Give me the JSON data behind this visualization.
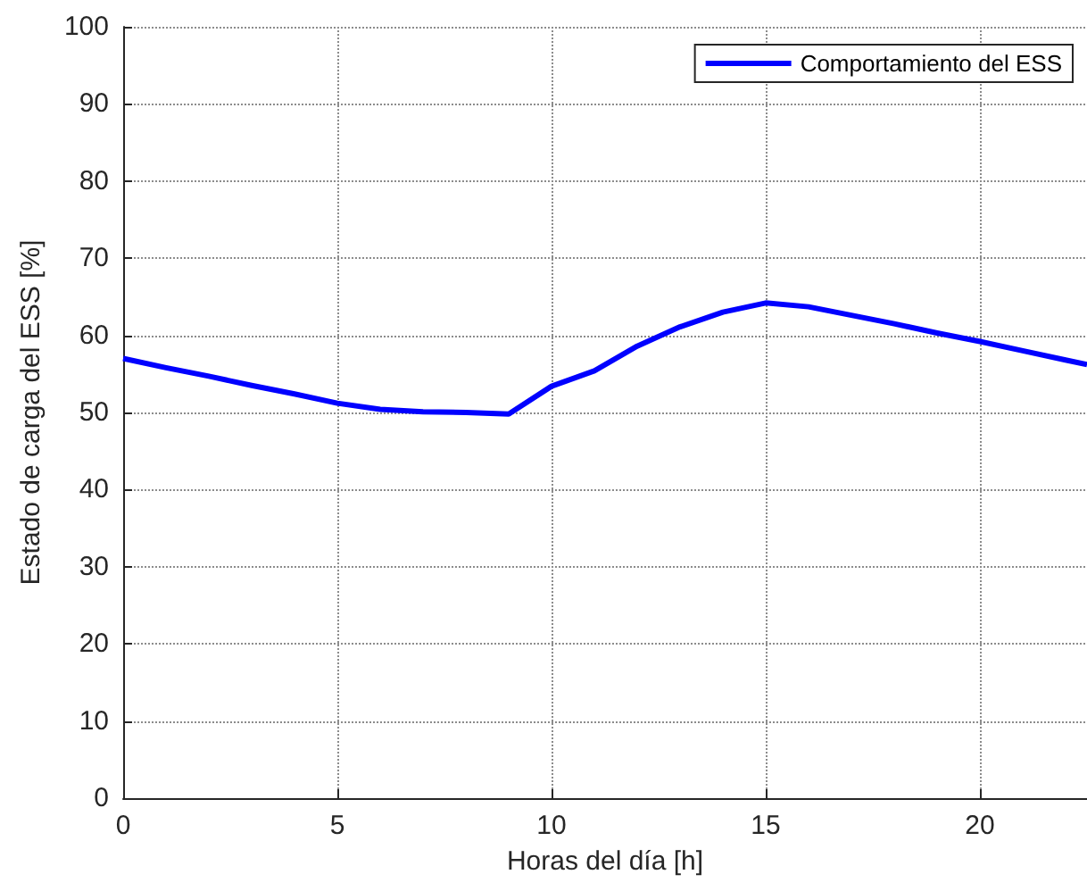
{
  "chart_data": {
    "type": "line",
    "xlabel": "Horas del día [h]",
    "ylabel": "Estado de carga del ESS [%]",
    "x": [
      0,
      1,
      2,
      3,
      4,
      5,
      6,
      7,
      8,
      9,
      10,
      11,
      12,
      13,
      14,
      15,
      16,
      17,
      18,
      19,
      20,
      21,
      22,
      22.5
    ],
    "series": [
      {
        "name": "Comportamiento del ESS",
        "color": "#0000ff",
        "values": [
          57,
          55.8,
          54.7,
          53.5,
          52.4,
          51.2,
          50.4,
          50.1,
          50,
          49.8,
          53.4,
          55.4,
          58.6,
          61.1,
          63,
          64.2,
          63.7,
          62.6,
          61.5,
          60.3,
          59.2,
          58,
          56.8,
          56.2
        ]
      }
    ],
    "xlim": [
      0,
      22.5
    ],
    "xticks": [
      0,
      5,
      10,
      15,
      20
    ],
    "ylim": [
      0,
      100
    ],
    "yticks": [
      0,
      10,
      20,
      30,
      40,
      50,
      60,
      70,
      80,
      90,
      100
    ],
    "grid": true,
    "legend": "top right",
    "marker": "none",
    "line_style": "solid"
  }
}
